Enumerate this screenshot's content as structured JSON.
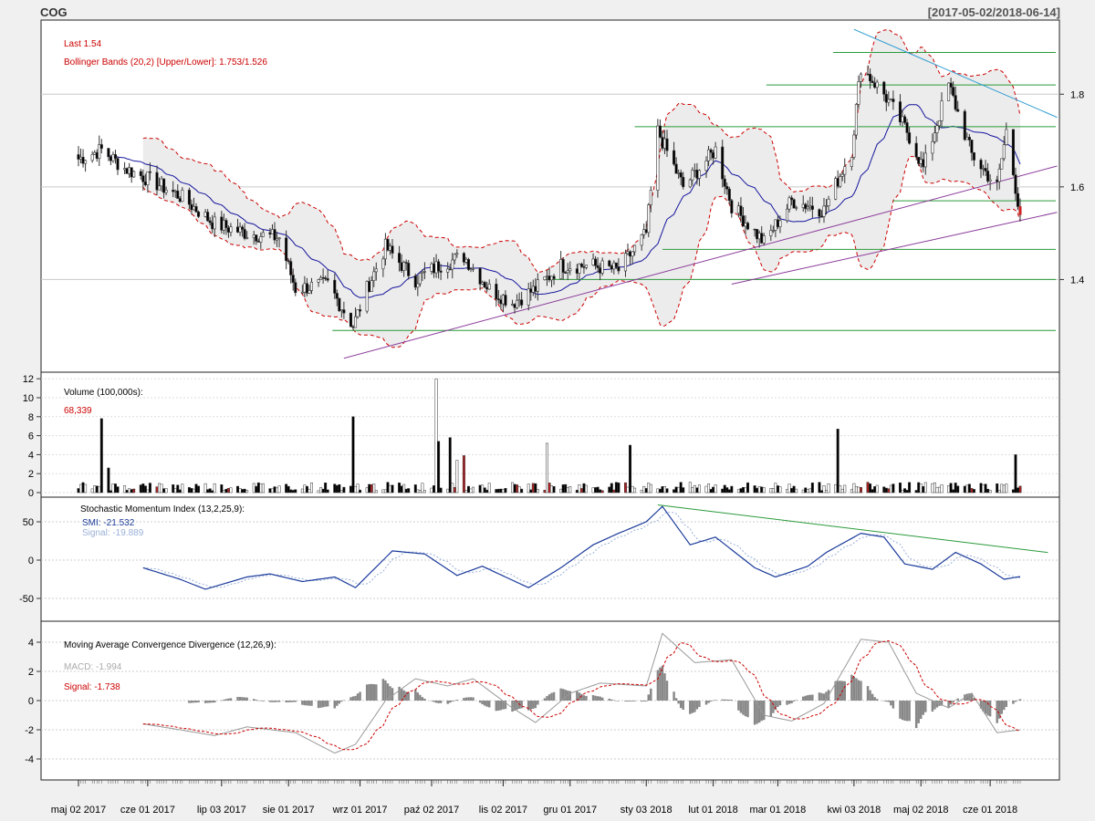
{
  "header": {
    "symbol": "COG",
    "date_range": "[2017-05-02/2018-06-14]"
  },
  "colors": {
    "background": "#f0f0f0",
    "panel": "#ffffff",
    "grid": "#c8c8c8",
    "up_candle": "#ffffff",
    "down_candle": "#000000",
    "last_candle": "#cc2222",
    "bbands_line": "#cc0000",
    "bbands_fill": "#ececec",
    "sma": "#1a1aa0",
    "support_lines": "#2a9a3a",
    "trend_purple": "#8a3a9a",
    "trend_cyan": "#2a9ad0",
    "smi_line": "#1a3a9a",
    "smi_signal": "#9ab0d8",
    "macd_line": "#999999",
    "macd_signal": "#cc0000",
    "histogram": "#888888",
    "volume_red": "#aa2222"
  },
  "x_axis": {
    "tick_labels": [
      "maj 02 2017",
      "cze 01 2017",
      "lip 03 2017",
      "sie 01 2017",
      "wrz 01 2017",
      "paź 02 2017",
      "lis 02 2017",
      "gru 01 2017",
      "sty 03 2018",
      "lut 01 2018",
      "mar 01 2018",
      "kwi 03 2018",
      "maj 02 2018",
      "cze 01 2018"
    ]
  },
  "panels": {
    "price": {
      "legend_last": "Last 1.54",
      "legend_bbands": "Bollinger Bands (20,2) [Upper/Lower]: 1.753/1.526",
      "y_ticks": [
        "1.8",
        "1.6",
        "1.4"
      ]
    },
    "volume": {
      "title": "Volume (100,000s):",
      "value": "68,339",
      "y_ticks": [
        "12",
        "10",
        "8",
        "6",
        "4",
        "2",
        "0"
      ]
    },
    "smi": {
      "title": "Stochastic Momentum Index (13,2,25,9):",
      "smi_label": "SMI: -21.532",
      "signal_label": "Signal: -19.889",
      "y_ticks": [
        "50",
        "0",
        "-50"
      ]
    },
    "macd": {
      "title": "Moving Average Convergence Divergence (12,26,9):",
      "macd_label": "MACD: -1.994",
      "signal_label": "Signal: -1.738",
      "y_ticks": [
        "4",
        "2",
        "0",
        "-2",
        "-4"
      ]
    }
  },
  "chart_data": {
    "type": "candlestick",
    "symbol": "COG",
    "period": [
      "2017-05-02",
      "2018-06-14"
    ],
    "price_ylim": [
      1.2,
      1.96
    ],
    "price_anchors": [
      [
        "2017-05-02",
        1.66
      ],
      [
        "2017-05-12",
        1.68
      ],
      [
        "2017-05-22",
        1.64
      ],
      [
        "2017-05-31",
        1.62
      ],
      [
        "2017-06-15",
        1.58
      ],
      [
        "2017-06-30",
        1.52
      ],
      [
        "2017-07-14",
        1.5
      ],
      [
        "2017-07-28",
        1.49
      ],
      [
        "2017-08-04",
        1.38
      ],
      [
        "2017-08-18",
        1.39
      ],
      [
        "2017-08-29",
        1.3
      ],
      [
        "2017-09-04",
        1.38
      ],
      [
        "2017-09-12",
        1.47
      ],
      [
        "2017-09-25",
        1.4
      ],
      [
        "2017-10-05",
        1.43
      ],
      [
        "2017-10-16",
        1.45
      ],
      [
        "2017-10-27",
        1.38
      ],
      [
        "2017-11-06",
        1.35
      ],
      [
        "2017-11-16",
        1.38
      ],
      [
        "2017-11-27",
        1.43
      ],
      [
        "2017-12-11",
        1.43
      ],
      [
        "2017-12-22",
        1.42
      ],
      [
        "2018-01-03",
        1.5
      ],
      [
        "2018-01-08",
        1.72
      ],
      [
        "2018-01-19",
        1.6
      ],
      [
        "2018-02-02",
        1.68
      ],
      [
        "2018-02-09",
        1.56
      ],
      [
        "2018-02-23",
        1.48
      ],
      [
        "2018-03-07",
        1.57
      ],
      [
        "2018-03-21",
        1.55
      ],
      [
        "2018-04-02",
        1.68
      ],
      [
        "2018-04-06",
        1.86
      ],
      [
        "2018-04-16",
        1.8
      ],
      [
        "2018-04-26",
        1.72
      ],
      [
        "2018-05-03",
        1.64
      ],
      [
        "2018-05-14",
        1.82
      ],
      [
        "2018-05-24",
        1.67
      ],
      [
        "2018-06-04",
        1.6
      ],
      [
        "2018-06-08",
        1.72
      ],
      [
        "2018-06-14",
        1.54
      ]
    ],
    "price_last": 1.54,
    "bollinger_bands": {
      "period": 20,
      "sd": 2,
      "upper": 1.753,
      "lower": 1.526
    },
    "support_levels": [
      1.89,
      1.82,
      1.73,
      1.57,
      1.465,
      1.4,
      1.29
    ],
    "trend_lines": [
      {
        "name": "downtrend",
        "from": [
          "2018-04-03",
          1.94
        ],
        "to": [
          "2018-06-30",
          1.75
        ]
      },
      {
        "name": "uptrend-1",
        "from": [
          "2017-08-25",
          1.23
        ],
        "to": [
          "2018-06-30",
          1.645
        ]
      },
      {
        "name": "uptrend-2",
        "from": [
          "2018-02-09",
          1.39
        ],
        "to": [
          "2018-06-30",
          1.545
        ]
      }
    ],
    "volume_ylim": [
      0,
      12.5
    ],
    "volume_spikes": [
      [
        "2017-05-12",
        7.8
      ],
      [
        "2017-05-15",
        2.6
      ],
      [
        "2017-08-29",
        8.0
      ],
      [
        "2017-10-04",
        12.0
      ],
      [
        "2017-10-05",
        5.4
      ],
      [
        "2017-10-10",
        5.8
      ],
      [
        "2017-10-13",
        3.4
      ],
      [
        "2017-10-16",
        3.9
      ],
      [
        "2017-11-21",
        5.2
      ],
      [
        "2017-12-27",
        5.0
      ],
      [
        "2018-03-27",
        6.7
      ],
      [
        "2018-06-12",
        4.0
      ]
    ],
    "volume_last": 0.68339,
    "smi": {
      "params": [
        13,
        2,
        25,
        9
      ],
      "value": -21.532,
      "signal": -19.889,
      "ylim": [
        -80,
        80
      ]
    },
    "smi_anchors": [
      [
        "2017-05-30",
        -10
      ],
      [
        "2017-06-15",
        -25
      ],
      [
        "2017-06-26",
        -38
      ],
      [
        "2017-07-14",
        -22
      ],
      [
        "2017-07-24",
        -18
      ],
      [
        "2017-08-07",
        -28
      ],
      [
        "2017-08-21",
        -22
      ],
      [
        "2017-08-30",
        -36
      ],
      [
        "2017-09-15",
        12
      ],
      [
        "2017-09-29",
        8
      ],
      [
        "2017-10-13",
        -20
      ],
      [
        "2017-10-24",
        -8
      ],
      [
        "2017-11-13",
        -36
      ],
      [
        "2017-11-27",
        -10
      ],
      [
        "2017-12-11",
        20
      ],
      [
        "2017-12-22",
        35
      ],
      [
        "2018-01-03",
        50
      ],
      [
        "2018-01-10",
        70
      ],
      [
        "2018-01-22",
        20
      ],
      [
        "2018-02-02",
        30
      ],
      [
        "2018-02-19",
        -10
      ],
      [
        "2018-02-28",
        -22
      ],
      [
        "2018-03-14",
        -8
      ],
      [
        "2018-03-22",
        10
      ],
      [
        "2018-04-06",
        35
      ],
      [
        "2018-04-16",
        30
      ],
      [
        "2018-04-25",
        -5
      ],
      [
        "2018-05-07",
        -12
      ],
      [
        "2018-05-17",
        10
      ],
      [
        "2018-05-28",
        -5
      ],
      [
        "2018-06-07",
        -25
      ],
      [
        "2018-06-14",
        -21.5
      ]
    ],
    "smi_trend_line": {
      "from": [
        "2018-01-08",
        72
      ],
      "to": [
        "2018-06-26",
        10
      ]
    },
    "macd": {
      "params": [
        12,
        26,
        9
      ],
      "value": -1.994,
      "signal": -1.738,
      "ylim": [
        -5,
        5
      ]
    },
    "macd_anchors": [
      [
        "2017-05-30",
        -1.6
      ],
      [
        "2017-06-15",
        -2.0
      ],
      [
        "2017-06-30",
        -2.4
      ],
      [
        "2017-07-14",
        -1.8
      ],
      [
        "2017-08-04",
        -2.2
      ],
      [
        "2017-08-21",
        -3.6
      ],
      [
        "2017-08-30",
        -3.0
      ],
      [
        "2017-09-12",
        0.0
      ],
      [
        "2017-09-25",
        1.5
      ],
      [
        "2017-10-09",
        1.0
      ],
      [
        "2017-10-20",
        1.5
      ],
      [
        "2017-11-06",
        -0.5
      ],
      [
        "2017-11-16",
        -1.5
      ],
      [
        "2017-12-01",
        0.5
      ],
      [
        "2017-12-14",
        1.2
      ],
      [
        "2018-01-03",
        1.0
      ],
      [
        "2018-01-10",
        4.6
      ],
      [
        "2018-01-24",
        2.6
      ],
      [
        "2018-02-09",
        2.8
      ],
      [
        "2018-02-23",
        -1.0
      ],
      [
        "2018-03-07",
        -1.4
      ],
      [
        "2018-03-21",
        -0.2
      ],
      [
        "2018-04-06",
        4.2
      ],
      [
        "2018-04-18",
        4.0
      ],
      [
        "2018-04-30",
        0.5
      ],
      [
        "2018-05-14",
        -0.5
      ],
      [
        "2018-05-24",
        0.5
      ],
      [
        "2018-06-04",
        -2.2
      ],
      [
        "2018-06-14",
        -2.0
      ]
    ]
  }
}
